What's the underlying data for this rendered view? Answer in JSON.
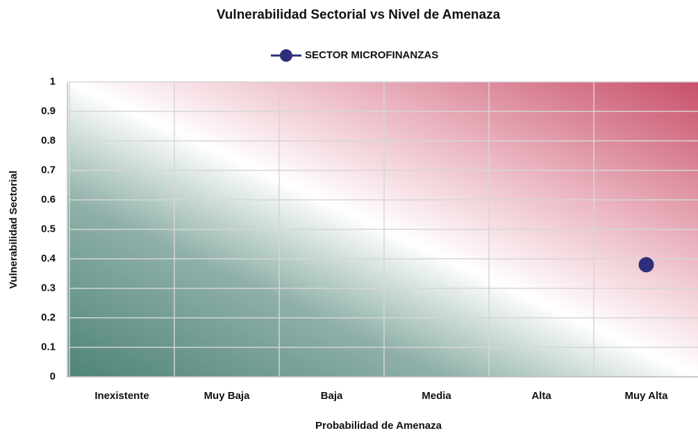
{
  "chart_data": {
    "type": "line",
    "title": "Vulnerabilidad Sectorial vs Nivel de Amenaza",
    "x_label": "Probabilidad de Amenaza",
    "y_label": "Vulnerabilidad Sectorial",
    "categories": [
      "Inexistente",
      "Muy Baja",
      "Baja",
      "Media",
      "Alta",
      "Muy Alta"
    ],
    "series": [
      {
        "name": "SECTOR MICROFINANZAS",
        "color": "#2e2e7a",
        "values": [
          null,
          null,
          null,
          null,
          null,
          0.38
        ]
      }
    ],
    "ylim": [
      0,
      1
    ],
    "yticks": [
      0,
      0.1,
      0.2,
      0.3,
      0.4,
      0.5,
      0.6,
      0.7,
      0.8,
      0.9,
      1
    ],
    "grid": true,
    "legend": "top"
  }
}
